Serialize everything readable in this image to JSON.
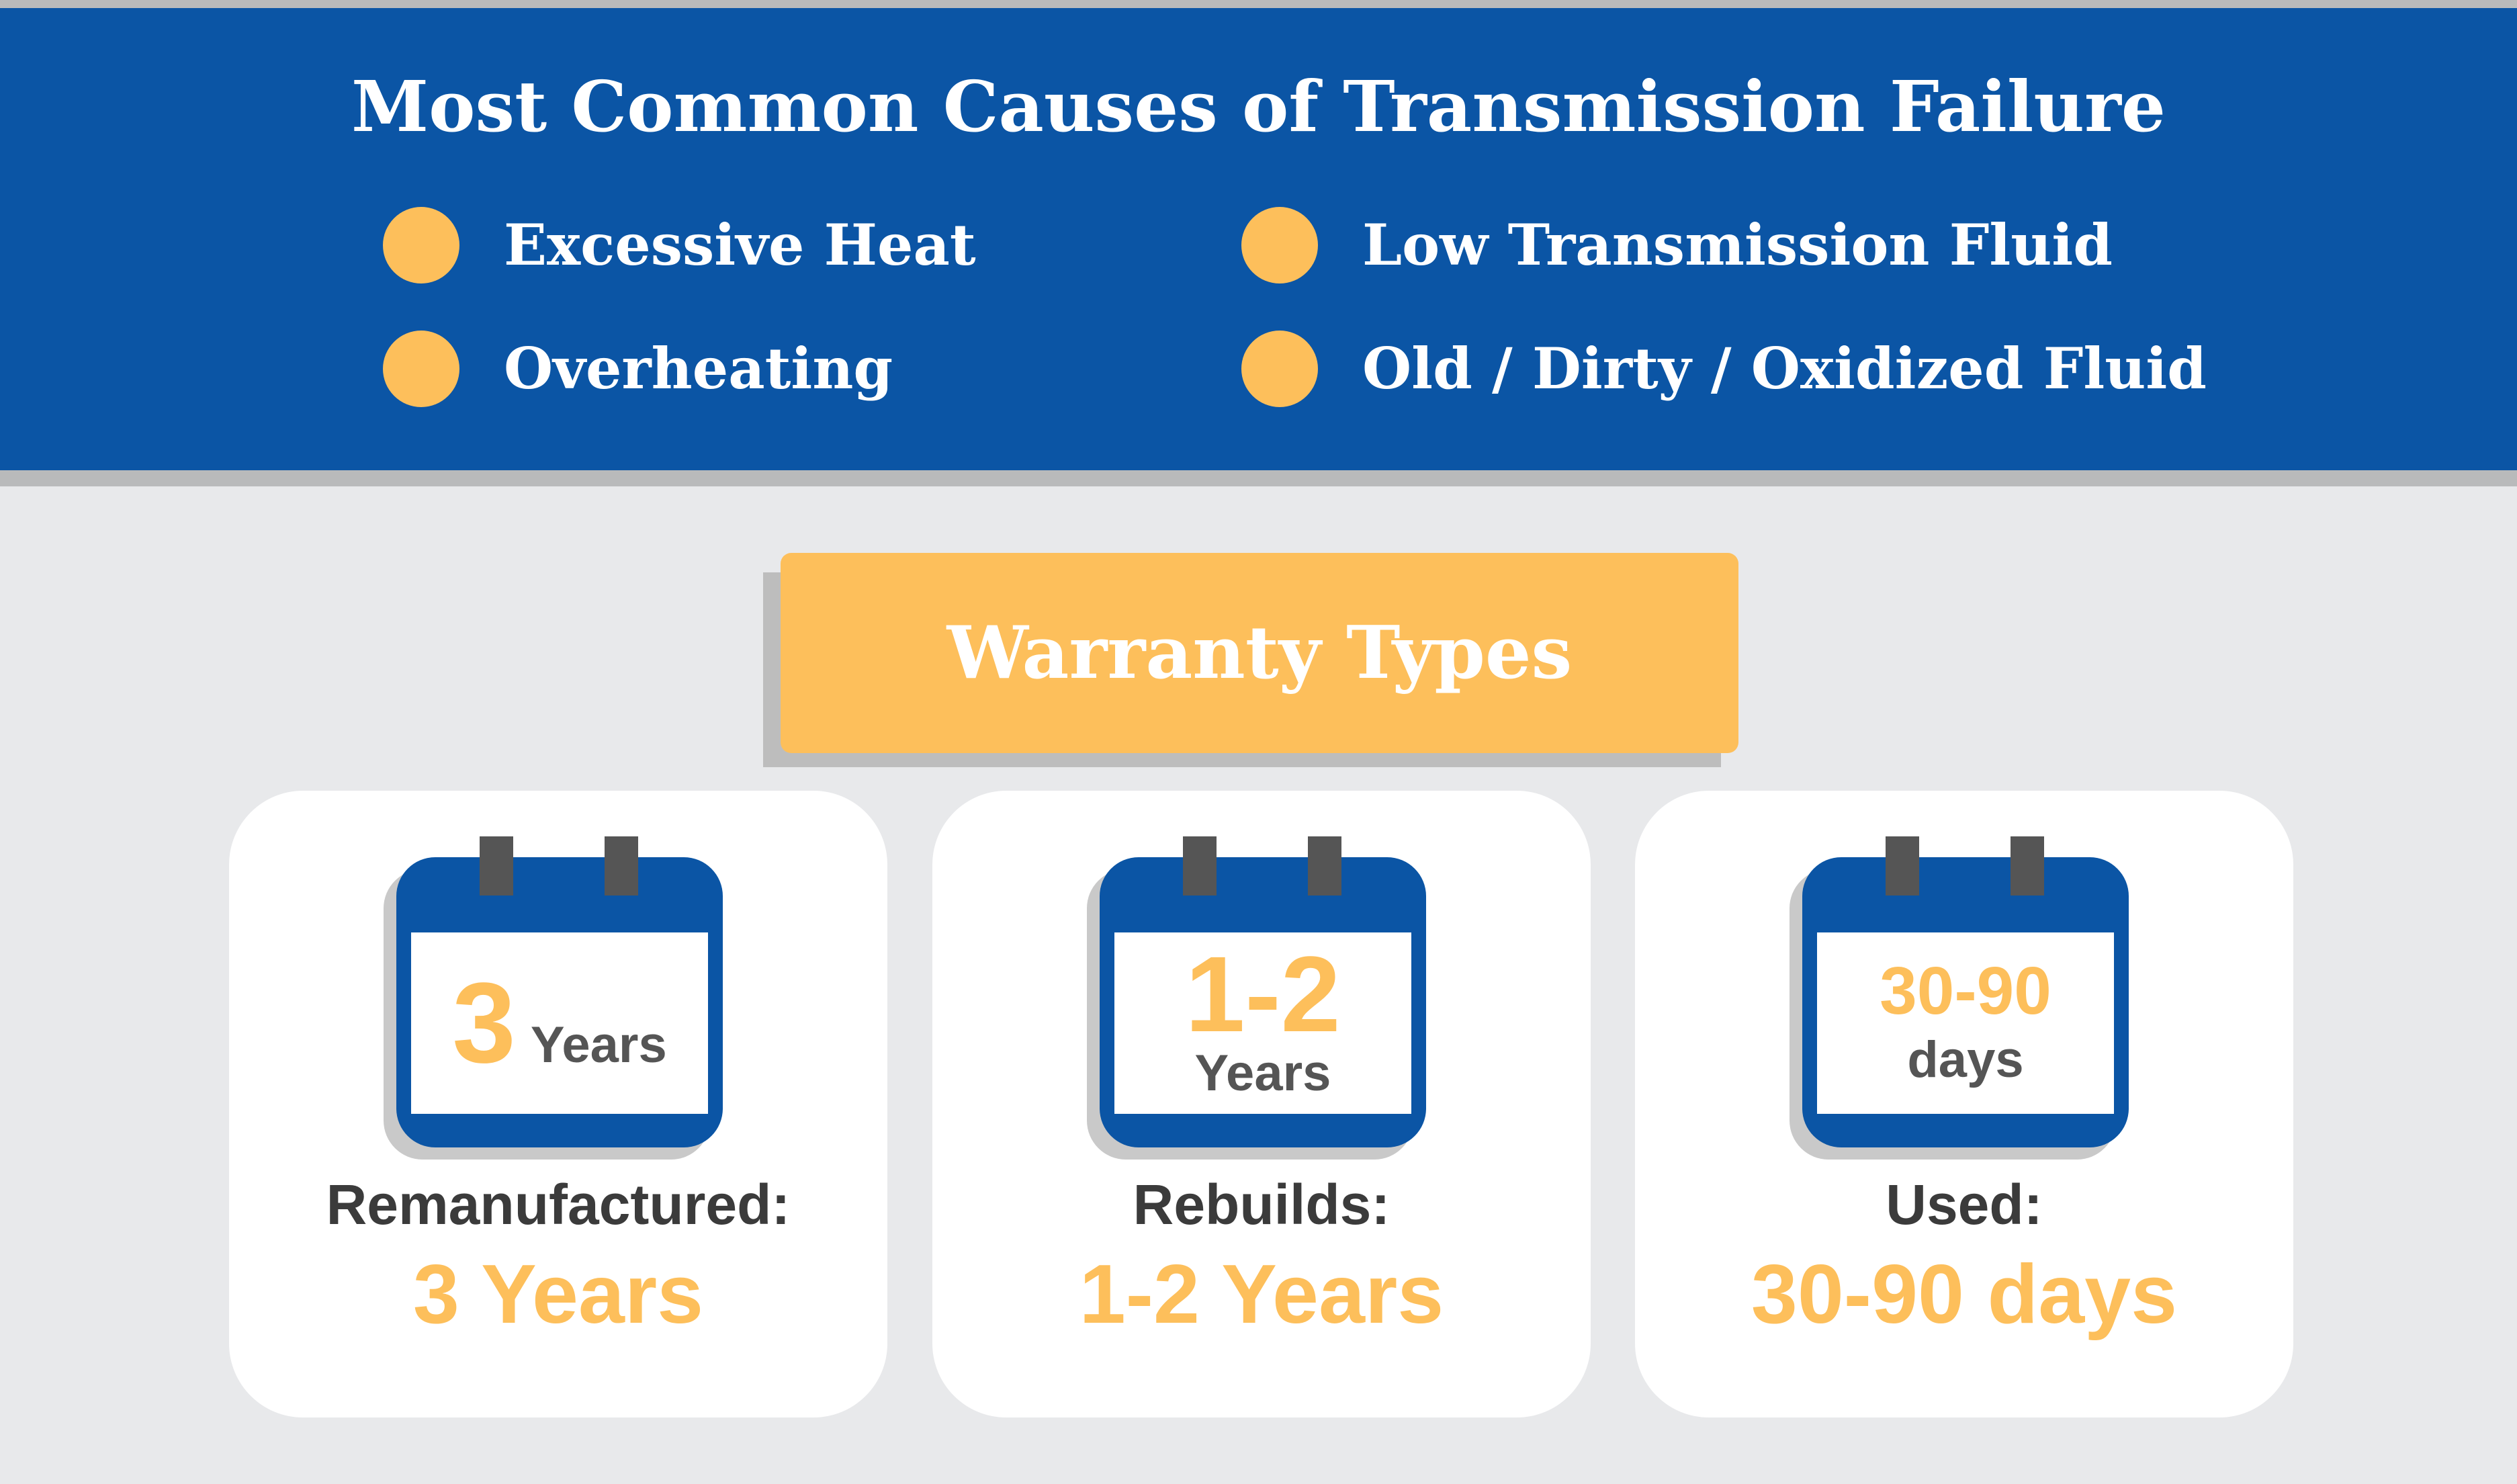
{
  "header": {
    "title": "Most Common Causes of Transmission Failure",
    "causes": [
      {
        "label": "Excessive Heat"
      },
      {
        "label": "Overheating"
      },
      {
        "label": "Low Transmission Fluid"
      },
      {
        "label": "Old / Dirty / Oxidized Fluid"
      }
    ]
  },
  "warranty": {
    "title": "Warranty Types",
    "cards": [
      {
        "calendar_number": "3",
        "calendar_unit": "Years",
        "label": "Remanufactured:",
        "value": "3 Years"
      },
      {
        "calendar_number": "1-2",
        "calendar_unit": "Years",
        "label": "Rebuilds:",
        "value": "1-2 Years"
      },
      {
        "calendar_number": "30-90",
        "calendar_unit": "days",
        "label": "Used:",
        "value": "30-90 days"
      }
    ]
  },
  "colors": {
    "header_blue": "#0b55a5",
    "accent_yellow": "#fdbf5b",
    "background_gray": "#e8e9eb"
  }
}
